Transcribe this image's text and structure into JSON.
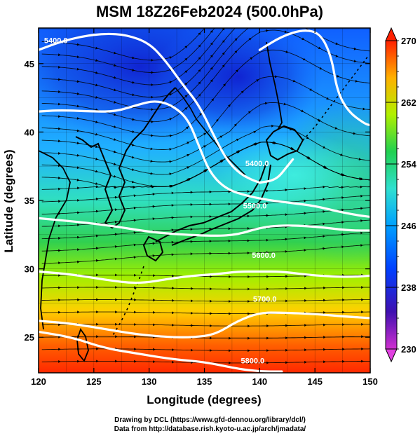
{
  "title": "MSM 18Z26Feb2024 (500.0hPa)",
  "xlabel": "Longitude (degrees)",
  "ylabel": "Latitude  (degrees)",
  "credits": {
    "line1": "Drawing by DCL (https://www.gfd-dennou.org/library/dcl/)",
    "line2": "Data from http://database.rish.kyoto-u.ac.jp/arch/jmadata/"
  },
  "x_ticks": [
    120,
    125,
    130,
    135,
    140,
    145,
    150
  ],
  "y_ticks": [
    25,
    30,
    35,
    40,
    45
  ],
  "x_range": [
    120,
    150
  ],
  "y_range": [
    22.4,
    47.6
  ],
  "colorbar": {
    "min": 230,
    "max": 270,
    "ticks": [
      230,
      238,
      246,
      254,
      262,
      270
    ],
    "colors": [
      "#d030d0",
      "#3010b0",
      "#0070ff",
      "#30e0e0",
      "#20d060",
      "#c0f000",
      "#ffb000",
      "#ff2000"
    ]
  },
  "contours": [
    {
      "label": "5400.0",
      "label_pos": [
        120.5,
        46.5
      ],
      "points": [
        [
          120,
          46.0
        ],
        [
          122,
          46.6
        ],
        [
          124,
          47.0
        ],
        [
          126,
          47.2
        ],
        [
          128,
          47.1
        ],
        [
          130,
          46.5
        ],
        [
          131.5,
          45.2
        ],
        [
          133,
          43.5
        ],
        [
          134.5,
          42.0
        ],
        [
          136,
          39.5
        ],
        [
          137,
          38.0
        ],
        [
          138,
          37.1
        ],
        [
          139,
          36.6
        ],
        [
          140,
          36.3
        ]
      ]
    },
    {
      "label": "5400.0",
      "label_pos": [
        138.7,
        37.5
      ],
      "points": [
        [
          140,
          36.3
        ],
        [
          141.5,
          36.5
        ],
        [
          142.5,
          37.5
        ],
        [
          143,
          38.0
        ]
      ]
    },
    {
      "label": "",
      "label_pos": null,
      "points": [
        [
          120,
          41.5
        ],
        [
          122,
          41.6
        ],
        [
          125,
          41.5
        ],
        [
          127,
          41.5
        ],
        [
          129,
          42.0
        ],
        [
          130.5,
          42.3
        ],
        [
          132,
          42.0
        ],
        [
          133.5,
          41.0
        ],
        [
          134.5,
          39.0
        ],
        [
          135.5,
          37.0
        ],
        [
          137,
          35.8
        ],
        [
          139,
          35.3
        ],
        [
          141,
          35.0
        ],
        [
          143,
          34.8
        ],
        [
          145,
          34.6
        ],
        [
          147,
          34.2
        ],
        [
          149,
          33.9
        ],
        [
          150,
          33.8
        ]
      ]
    },
    {
      "label": "",
      "label_pos": null,
      "points": [
        [
          140,
          46.0
        ],
        [
          142,
          47.0
        ],
        [
          144,
          47.5
        ],
        [
          145.5,
          47.2
        ],
        [
          146.5,
          45.5
        ],
        [
          147,
          43.0
        ],
        [
          148,
          41.5
        ],
        [
          149.5,
          40.6
        ],
        [
          150,
          40.5
        ]
      ]
    },
    {
      "label": "5500.0",
      "label_pos": [
        138.5,
        34.4
      ],
      "points": [
        [
          120,
          33.7
        ],
        [
          124,
          33.4
        ],
        [
          127,
          33.1
        ],
        [
          130,
          32.7
        ],
        [
          133,
          32.5
        ],
        [
          136,
          32.4
        ],
        [
          138,
          32.5
        ],
        [
          140,
          33.0
        ],
        [
          142,
          33.2
        ],
        [
          145,
          33.1
        ],
        [
          148,
          32.8
        ],
        [
          150,
          32.8
        ]
      ]
    },
    {
      "label": "5600.0",
      "label_pos": [
        139.3,
        30.8
      ],
      "points": [
        [
          120,
          29.8
        ],
        [
          123,
          29.6
        ],
        [
          126,
          29.2
        ],
        [
          129,
          28.9
        ],
        [
          132,
          29.3
        ],
        [
          134,
          29.5
        ],
        [
          136,
          29.6
        ],
        [
          138,
          29.8
        ],
        [
          140,
          29.8
        ],
        [
          142,
          29.8
        ],
        [
          145,
          29.5
        ],
        [
          148,
          29.4
        ],
        [
          150,
          29.5
        ]
      ]
    },
    {
      "label": "5700.0",
      "label_pos": [
        139.4,
        27.6
      ],
      "points": [
        [
          120,
          26.2
        ],
        [
          123,
          26.0
        ],
        [
          126,
          25.6
        ],
        [
          129,
          25.2
        ],
        [
          132,
          25.0
        ],
        [
          134,
          25.0
        ],
        [
          136,
          25.2
        ],
        [
          138,
          26.2
        ],
        [
          140,
          26.8
        ],
        [
          142,
          26.8
        ],
        [
          145,
          26.7
        ],
        [
          148,
          26.5
        ],
        [
          150,
          26.4
        ]
      ]
    },
    {
      "label": "5800.0",
      "label_pos": [
        138.3,
        23.1
      ],
      "points": [
        [
          120,
          25.4
        ],
        [
          123,
          25.0
        ],
        [
          126,
          24.2
        ],
        [
          129,
          23.8
        ],
        [
          132,
          23.4
        ],
        [
          135,
          23.2
        ],
        [
          138,
          22.7
        ],
        [
          140,
          22.5
        ],
        [
          142,
          22.5
        ]
      ]
    }
  ]
}
